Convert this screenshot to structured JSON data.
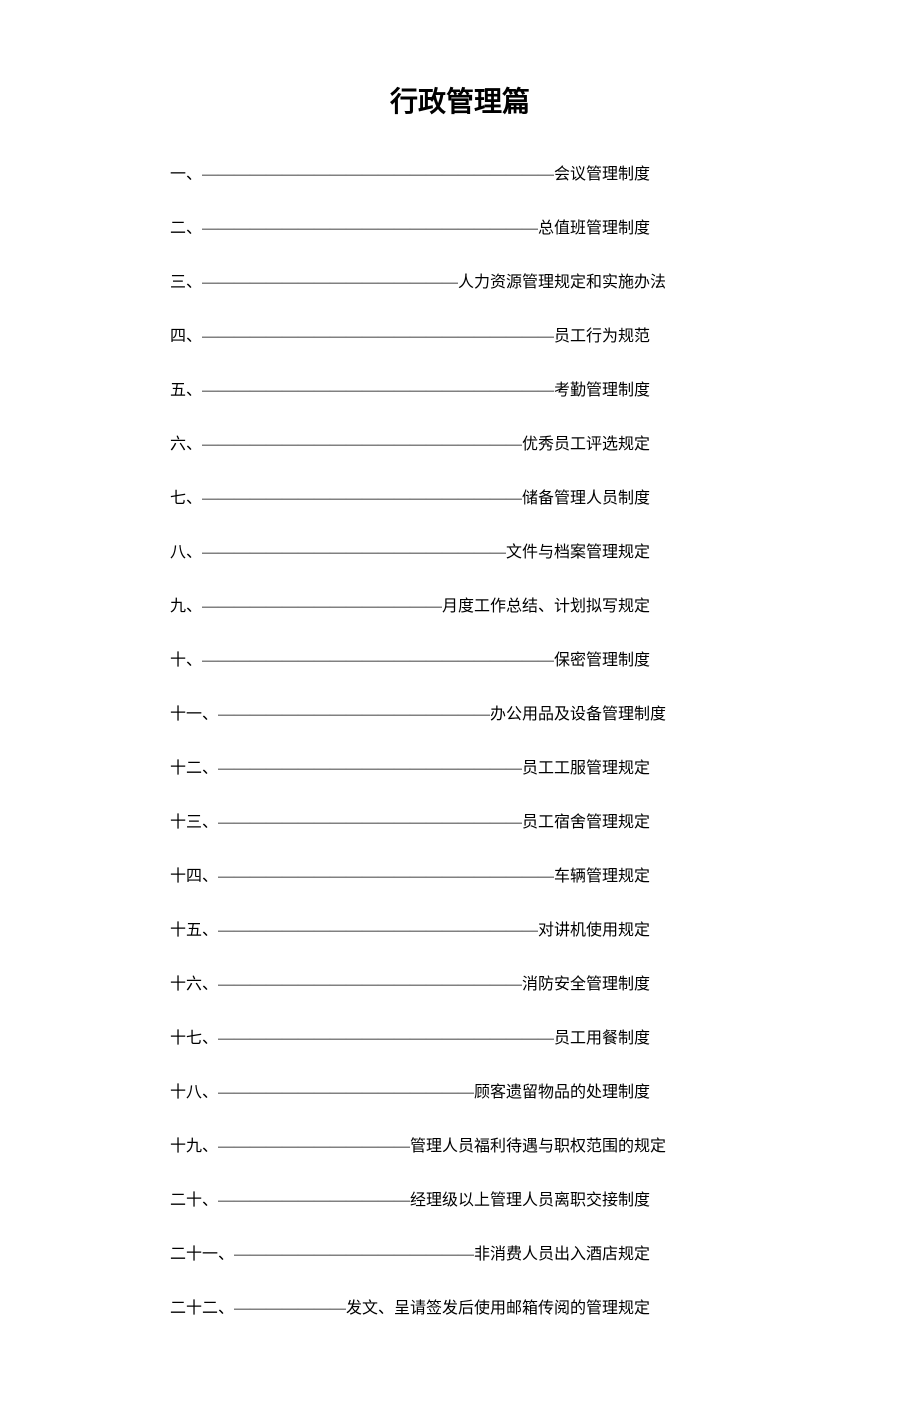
{
  "title": "行政管理篇",
  "title_fontsize": 28,
  "title_fontweight": "bold",
  "body_fontsize": 16,
  "text_color": "#000000",
  "background_color": "#ffffff",
  "line_spacing": 30,
  "toc": [
    {
      "number": "一、",
      "dashes": "——————————————————————",
      "label": "会议管理制度"
    },
    {
      "number": "二、",
      "dashes": "—————————————————————",
      "label": "总值班管理制度"
    },
    {
      "number": "三、",
      "dashes": "————————————————",
      "label": "人力资源管理规定和实施办法"
    },
    {
      "number": "四、",
      "dashes": "——————————————————————",
      "label": "员工行为规范"
    },
    {
      "number": "五、",
      "dashes": "——————————————————————",
      "label": "考勤管理制度"
    },
    {
      "number": "六、",
      "dashes": "————————————————————",
      "label": "优秀员工评选规定"
    },
    {
      "number": "七、",
      "dashes": "————————————————————",
      "label": "储备管理人员制度"
    },
    {
      "number": "八、",
      "dashes": "———————————————————",
      "label": "文件与档案管理规定"
    },
    {
      "number": "九、",
      "dashes": "———————————————",
      "label": "月度工作总结、计划拟写规定"
    },
    {
      "number": "十、",
      "dashes": "——————————————————————",
      "label": "保密管理制度"
    },
    {
      "number": "十一、",
      "dashes": "—————————————————",
      "label": "办公用品及设备管理制度"
    },
    {
      "number": "十二、",
      "dashes": "———————————————————",
      "label": "员工工服管理规定"
    },
    {
      "number": "十三、",
      "dashes": "———————————————————",
      "label": "员工宿舍管理规定"
    },
    {
      "number": "十四、",
      "dashes": "—————————————————————",
      "label": "车辆管理规定"
    },
    {
      "number": "十五、",
      "dashes": "————————————————————",
      "label": "对讲机使用规定"
    },
    {
      "number": "十六、",
      "dashes": "———————————————————",
      "label": "消防安全管理制度"
    },
    {
      "number": "十七、",
      "dashes": "—————————————————————",
      "label": "员工用餐制度"
    },
    {
      "number": "十八、",
      "dashes": "————————————————",
      "label": "顾客遗留物品的处理制度"
    },
    {
      "number": "十九、",
      "dashes": "————————————",
      "label": "管理人员福利待遇与职权范围的规定"
    },
    {
      "number": "二十、",
      "dashes": "————————————",
      "label": "经理级以上管理人员离职交接制度"
    },
    {
      "number": "二十一、",
      "dashes": "———————————————",
      "label": "非消费人员出入酒店规定"
    },
    {
      "number": "二十二、",
      "dashes": "———————",
      "label": "发文、呈请签发后使用邮箱传阅的管理规定"
    }
  ]
}
